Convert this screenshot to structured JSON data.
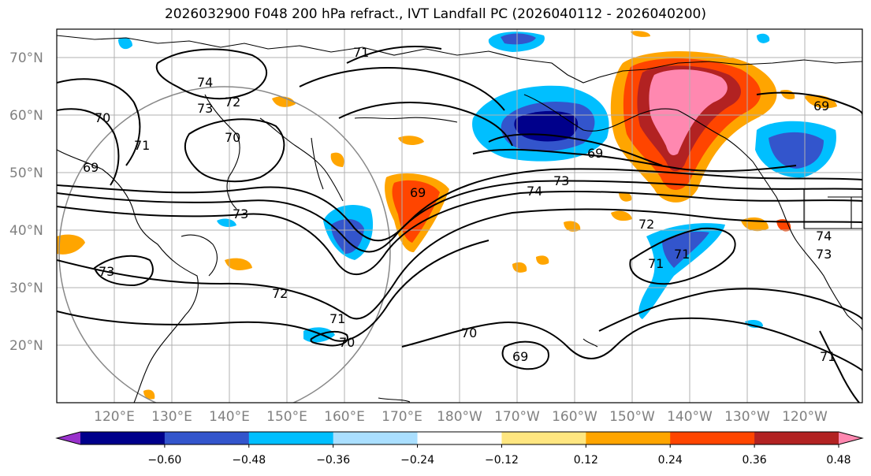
{
  "title": "2026032900 F048 200 hPa refract., IVT Landfall PC (2026040112 - 2026040200)",
  "lat_labels": [
    "70°N",
    "60°N",
    "50°N",
    "40°N",
    "30°N",
    "20°N"
  ],
  "lon_labels": [
    "120°E",
    "130°E",
    "140°E",
    "150°E",
    "160°E",
    "170°E",
    "180°W",
    "170°W",
    "160°W",
    "150°W",
    "140°W",
    "130°W",
    "120°W"
  ],
  "contour_labels": [
    "74",
    "73",
    "72",
    "71",
    "70",
    "69",
    "69",
    "70",
    "71",
    "73",
    "69",
    "69",
    "74",
    "73",
    "73",
    "73",
    "72",
    "71",
    "70",
    "70",
    "69",
    "71",
    "72",
    "71",
    "71",
    "69",
    "74",
    "73",
    "71"
  ],
  "colorbar": {
    "colors": [
      "#9932cc",
      "#00008b",
      "#3355cc",
      "#00bfff",
      "#aadfff",
      "#ffffff",
      "#ffe680",
      "#ffa500",
      "#ff4500",
      "#b22222",
      "#ff88b0"
    ],
    "ticks": [
      "−0.60",
      "−0.48",
      "−0.36",
      "−0.24",
      "−0.12",
      "0.12",
      "0.24",
      "0.36",
      "0.48",
      "0.60"
    ]
  }
}
